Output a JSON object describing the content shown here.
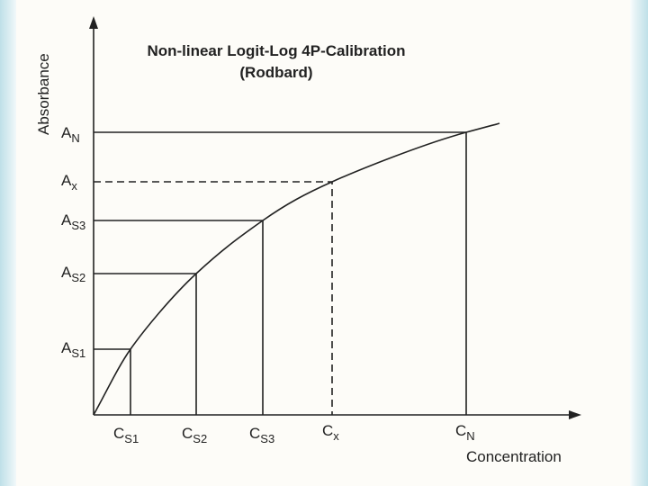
{
  "title": [
    "Non-linear Logit-Log 4P-Calibration",
    "(Rodbard)"
  ],
  "y_axis_label": "Absorbance",
  "x_axis_label": "Concentration",
  "y_labels": [
    {
      "main": "A",
      "sub": "N"
    },
    {
      "main": "A",
      "sub": "x"
    },
    {
      "main": "A",
      "sub": "S3"
    },
    {
      "main": "A",
      "sub": "S2"
    },
    {
      "main": "A",
      "sub": "S1"
    }
  ],
  "x_labels": [
    {
      "main": "C",
      "sub": "S1"
    },
    {
      "main": "C",
      "sub": "S2"
    },
    {
      "main": "C",
      "sub": "S3"
    },
    {
      "main": "C",
      "sub": "x"
    },
    {
      "main": "C",
      "sub": "N"
    }
  ]
}
